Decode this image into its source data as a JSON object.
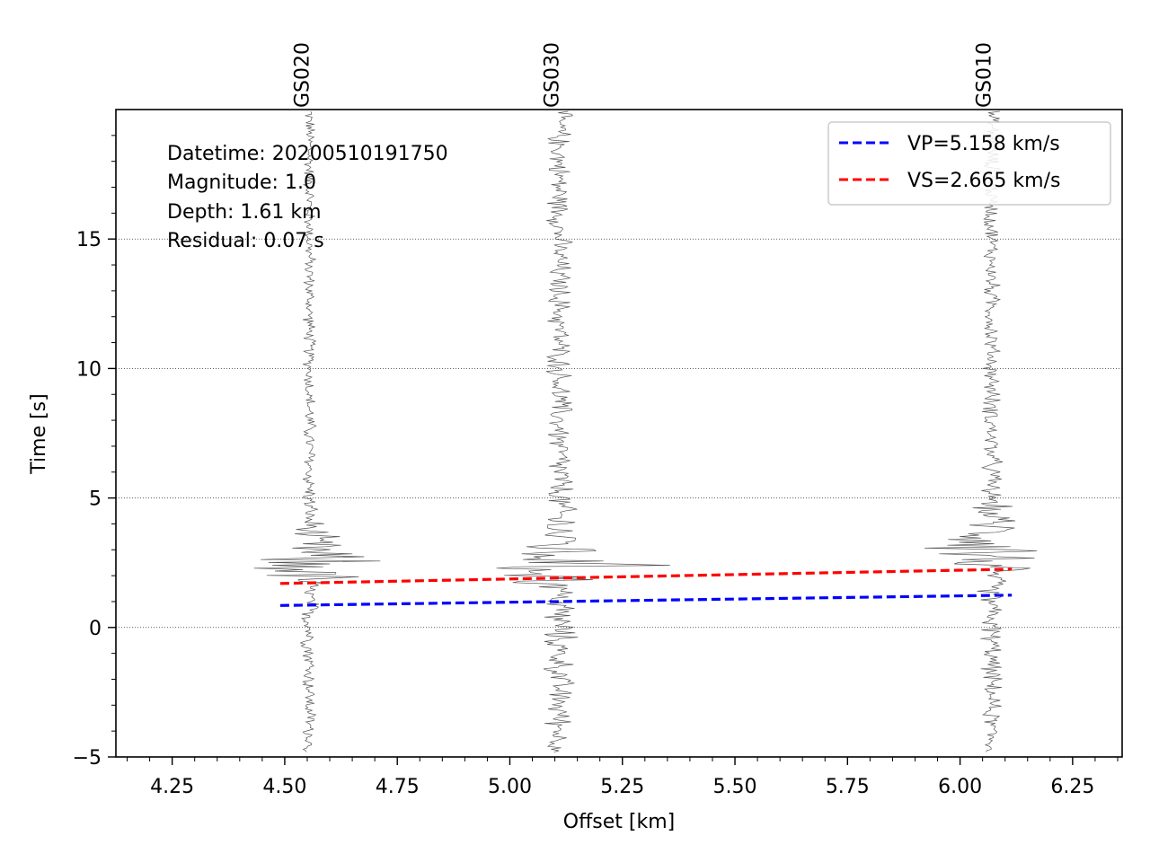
{
  "chart_data": {
    "type": "line",
    "xlabel": "Offset [km]",
    "ylabel": "Time [s]",
    "xlim": [
      4.125,
      6.36
    ],
    "ylim": [
      -5,
      20
    ],
    "x_ticks": [
      "4.25",
      "4.50",
      "4.75",
      "5.00",
      "5.25",
      "5.50",
      "5.75",
      "6.00",
      "6.25"
    ],
    "y_ticks": [
      "−5",
      "0",
      "5",
      "10",
      "15"
    ],
    "grid": "horizontal dotted at major y ticks",
    "legend_position": "top-right",
    "annotations": {
      "datetime": "Datetime: 20200510191750",
      "magnitude": "Magnitude: 1.0",
      "depth": "Depth: 1.61 km",
      "residual": "Residual: 0.07 s"
    },
    "stations": [
      {
        "name": "GS020",
        "offset": 4.555,
        "max_amp_at": 2.0
      },
      {
        "name": "GS030",
        "offset": 5.11,
        "max_amp_at": 2.0
      },
      {
        "name": "GS010",
        "offset": 6.07,
        "max_amp_at": 2.5
      }
    ],
    "series": [
      {
        "name": "VP=5.158 km/s",
        "color": "#0000ff",
        "style": "dashed",
        "x": [
          4.49,
          6.115
        ],
        "y": [
          0.85,
          1.25
        ]
      },
      {
        "name": "VS=2.665 km/s",
        "color": "#ff0000",
        "style": "dashed",
        "x": [
          4.49,
          6.115
        ],
        "y": [
          1.7,
          2.25
        ]
      }
    ]
  }
}
